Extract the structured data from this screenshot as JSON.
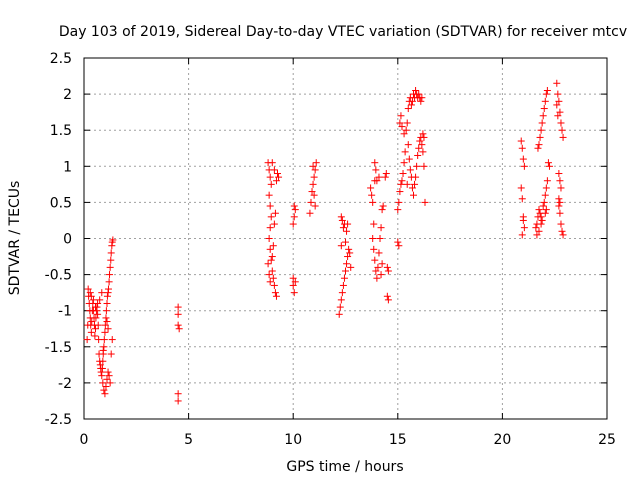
{
  "chart_data": {
    "type": "scatter",
    "title": "Day 103 of 2019, Sidereal Day-to-day VTEC variation (SDTVAR) for receiver mtcv",
    "xlabel": "GPS time / hours",
    "ylabel": "SDTVAR / TECUs",
    "xlim": [
      0,
      25
    ],
    "ylim": [
      -2.5,
      2.5
    ],
    "xticks": [
      0,
      5,
      10,
      15,
      20,
      25
    ],
    "yticks": [
      -2.5,
      -2,
      -1.5,
      -1,
      -0.5,
      0,
      0.5,
      1,
      1.5,
      2,
      2.5
    ],
    "xtick_labels": [
      "0",
      "5",
      "10",
      "15",
      "20",
      "25"
    ],
    "ytick_labels": [
      "-2.5",
      "-2",
      "-1.5",
      "-1",
      "-0.5",
      "0",
      "0.5",
      "1",
      "1.5",
      "2",
      "2.5"
    ],
    "grid": true,
    "marker": "+",
    "color": "#ff0000",
    "series": [
      {
        "name": "SDTVAR",
        "points": [
          [
            0.2,
            -0.7
          ],
          [
            0.22,
            -0.8
          ],
          [
            0.25,
            -0.9
          ],
          [
            0.28,
            -1.0
          ],
          [
            0.3,
            -1.1
          ],
          [
            0.32,
            -1.2
          ],
          [
            0.35,
            -1.3
          ],
          [
            0.37,
            -1.15
          ],
          [
            0.4,
            -1.0
          ],
          [
            0.42,
            -0.9
          ],
          [
            0.45,
            -1.0
          ],
          [
            0.48,
            -1.1
          ],
          [
            0.5,
            -1.2
          ],
          [
            0.52,
            -1.35
          ],
          [
            0.55,
            -1.25
          ],
          [
            0.57,
            -1.1
          ],
          [
            0.6,
            -1.0
          ],
          [
            0.62,
            -0.95
          ],
          [
            0.65,
            -1.05
          ],
          [
            0.68,
            -1.2
          ],
          [
            0.7,
            -1.4
          ],
          [
            0.72,
            -1.6
          ],
          [
            0.75,
            -1.7
          ],
          [
            0.78,
            -1.75
          ],
          [
            0.8,
            -1.8
          ],
          [
            0.82,
            -1.85
          ],
          [
            0.85,
            -1.9
          ],
          [
            0.88,
            -1.8
          ],
          [
            0.9,
            -1.7
          ],
          [
            0.92,
            -1.6
          ],
          [
            0.95,
            -1.5
          ],
          [
            0.97,
            -1.4
          ],
          [
            1.0,
            -1.3
          ],
          [
            1.02,
            -1.2
          ],
          [
            1.05,
            -1.1
          ],
          [
            1.07,
            -1.0
          ],
          [
            1.1,
            -0.9
          ],
          [
            1.12,
            -0.8
          ],
          [
            1.15,
            -0.75
          ],
          [
            1.17,
            -0.7
          ],
          [
            0.9,
            -2.0
          ],
          [
            0.95,
            -2.1
          ],
          [
            1.0,
            -2.15
          ],
          [
            1.05,
            -2.05
          ],
          [
            1.1,
            -1.95
          ],
          [
            1.15,
            -1.85
          ],
          [
            1.2,
            -1.9
          ],
          [
            1.25,
            -2.0
          ],
          [
            1.3,
            -1.6
          ],
          [
            1.35,
            -1.4
          ],
          [
            1.2,
            -0.6
          ],
          [
            1.22,
            -0.5
          ],
          [
            1.25,
            -0.4
          ],
          [
            1.28,
            -0.3
          ],
          [
            1.3,
            -0.2
          ],
          [
            1.33,
            -0.1
          ],
          [
            1.35,
            -0.05
          ],
          [
            1.38,
            -0.02
          ],
          [
            0.85,
            -0.75
          ],
          [
            0.75,
            -0.85
          ],
          [
            0.65,
            -0.9
          ],
          [
            0.55,
            -0.95
          ],
          [
            0.45,
            -0.85
          ],
          [
            0.35,
            -0.8
          ],
          [
            0.3,
            -0.75
          ],
          [
            0.15,
            -1.4
          ],
          [
            0.18,
            -1.2
          ],
          [
            1.1,
            -1.15
          ],
          [
            1.15,
            -1.25
          ],
          [
            0.92,
            -1.55
          ],
          [
            4.5,
            -0.95
          ],
          [
            4.5,
            -1.05
          ],
          [
            4.5,
            -1.2
          ],
          [
            4.55,
            -1.25
          ],
          [
            4.5,
            -2.15
          ],
          [
            4.5,
            -2.25
          ],
          [
            8.8,
            1.05
          ],
          [
            8.85,
            0.95
          ],
          [
            8.9,
            0.85
          ],
          [
            8.95,
            0.75
          ],
          [
            8.85,
            0.6
          ],
          [
            8.9,
            0.45
          ],
          [
            8.95,
            0.3
          ],
          [
            8.9,
            0.15
          ],
          [
            8.85,
            0.0
          ],
          [
            8.9,
            -0.15
          ],
          [
            8.95,
            -0.3
          ],
          [
            9.0,
            -0.45
          ],
          [
            9.05,
            -0.55
          ],
          [
            9.1,
            -0.65
          ],
          [
            9.15,
            -0.75
          ],
          [
            9.2,
            -0.8
          ],
          [
            8.8,
            -0.35
          ],
          [
            8.85,
            -0.5
          ],
          [
            8.9,
            -0.6
          ],
          [
            9.0,
            -0.25
          ],
          [
            9.05,
            -0.1
          ],
          [
            9.1,
            0.2
          ],
          [
            9.15,
            0.35
          ],
          [
            9.2,
            0.8
          ],
          [
            9.25,
            0.9
          ],
          [
            9.1,
            0.95
          ],
          [
            9.0,
            1.05
          ],
          [
            9.3,
            0.85
          ],
          [
            10.0,
            -0.55
          ],
          [
            10.0,
            -0.65
          ],
          [
            10.05,
            -0.75
          ],
          [
            10.1,
            -0.6
          ],
          [
            10.0,
            0.2
          ],
          [
            10.05,
            0.3
          ],
          [
            10.1,
            0.4
          ],
          [
            10.05,
            0.45
          ],
          [
            10.8,
            0.35
          ],
          [
            10.85,
            0.5
          ],
          [
            10.9,
            0.65
          ],
          [
            10.95,
            0.75
          ],
          [
            11.0,
            0.85
          ],
          [
            11.05,
            0.95
          ],
          [
            11.1,
            1.05
          ],
          [
            10.95,
            1.0
          ],
          [
            11.0,
            0.6
          ],
          [
            11.05,
            0.45
          ],
          [
            12.2,
            -1.05
          ],
          [
            12.25,
            -0.95
          ],
          [
            12.3,
            -0.85
          ],
          [
            12.35,
            -0.75
          ],
          [
            12.4,
            -0.65
          ],
          [
            12.45,
            -0.55
          ],
          [
            12.5,
            -0.45
          ],
          [
            12.55,
            -0.35
          ],
          [
            12.6,
            -0.25
          ],
          [
            12.65,
            -0.15
          ],
          [
            12.3,
            0.3
          ],
          [
            12.35,
            0.25
          ],
          [
            12.4,
            0.15
          ],
          [
            12.45,
            0.2
          ],
          [
            12.5,
            -0.05
          ],
          [
            12.55,
            0.1
          ],
          [
            12.6,
            0.2
          ],
          [
            12.7,
            -0.2
          ],
          [
            12.75,
            -0.4
          ],
          [
            12.3,
            -0.1
          ],
          [
            13.7,
            0.7
          ],
          [
            13.75,
            0.6
          ],
          [
            13.8,
            0.5
          ],
          [
            13.85,
            0.2
          ],
          [
            13.8,
            0.0
          ],
          [
            13.85,
            -0.15
          ],
          [
            13.9,
            -0.3
          ],
          [
            13.95,
            -0.45
          ],
          [
            14.0,
            -0.55
          ],
          [
            14.05,
            -0.4
          ],
          [
            14.1,
            -0.2
          ],
          [
            14.15,
            0.0
          ],
          [
            14.2,
            0.15
          ],
          [
            14.25,
            0.4
          ],
          [
            14.3,
            0.45
          ],
          [
            13.9,
            0.8
          ],
          [
            13.95,
            0.95
          ],
          [
            13.9,
            1.05
          ],
          [
            14.0,
            0.8
          ],
          [
            14.1,
            0.85
          ],
          [
            14.4,
            0.85
          ],
          [
            14.45,
            0.9
          ],
          [
            14.5,
            -0.4
          ],
          [
            14.55,
            -0.45
          ],
          [
            14.5,
            -0.8
          ],
          [
            14.55,
            -0.85
          ],
          [
            14.2,
            -0.5
          ],
          [
            14.25,
            -0.35
          ],
          [
            15.0,
            -0.05
          ],
          [
            15.05,
            -0.1
          ],
          [
            15.0,
            0.4
          ],
          [
            15.05,
            0.5
          ],
          [
            15.1,
            0.65
          ],
          [
            15.15,
            0.75
          ],
          [
            15.2,
            0.8
          ],
          [
            15.25,
            0.9
          ],
          [
            15.3,
            1.05
          ],
          [
            15.35,
            1.2
          ],
          [
            15.1,
            1.6
          ],
          [
            15.15,
            1.7
          ],
          [
            15.2,
            1.55
          ],
          [
            15.3,
            1.45
          ],
          [
            15.4,
            1.5
          ],
          [
            15.45,
            1.6
          ],
          [
            15.5,
            1.8
          ],
          [
            15.55,
            1.9
          ],
          [
            15.6,
            1.95
          ],
          [
            15.65,
            1.85
          ],
          [
            15.7,
            1.9
          ],
          [
            15.75,
            2.0
          ],
          [
            15.8,
            1.95
          ],
          [
            15.85,
            2.05
          ],
          [
            15.9,
            2.0
          ],
          [
            15.95,
            1.95
          ],
          [
            16.0,
            2.0
          ],
          [
            16.05,
            1.95
          ],
          [
            16.1,
            1.9
          ],
          [
            16.15,
            1.95
          ],
          [
            15.5,
            1.3
          ],
          [
            15.55,
            1.1
          ],
          [
            15.6,
            0.95
          ],
          [
            15.65,
            0.85
          ],
          [
            15.7,
            0.7
          ],
          [
            15.75,
            0.6
          ],
          [
            15.8,
            0.75
          ],
          [
            15.85,
            0.85
          ],
          [
            15.9,
            1.0
          ],
          [
            15.95,
            1.15
          ],
          [
            16.0,
            1.25
          ],
          [
            16.05,
            1.35
          ],
          [
            16.1,
            1.4
          ],
          [
            16.15,
            1.3
          ],
          [
            16.2,
            1.2
          ],
          [
            16.25,
            1.0
          ],
          [
            16.3,
            0.5
          ],
          [
            16.2,
            1.45
          ],
          [
            16.25,
            1.4
          ],
          [
            15.45,
            0.75
          ],
          [
            20.9,
            1.35
          ],
          [
            20.95,
            1.25
          ],
          [
            21.0,
            1.1
          ],
          [
            21.05,
            1.0
          ],
          [
            20.9,
            0.7
          ],
          [
            20.95,
            0.55
          ],
          [
            21.0,
            0.25
          ],
          [
            21.05,
            0.15
          ],
          [
            20.95,
            0.05
          ],
          [
            21.0,
            0.3
          ],
          [
            21.6,
            0.15
          ],
          [
            21.65,
            0.2
          ],
          [
            21.7,
            0.3
          ],
          [
            21.75,
            0.4
          ],
          [
            21.8,
            0.35
          ],
          [
            21.85,
            0.3
          ],
          [
            21.9,
            0.25
          ],
          [
            21.95,
            0.45
          ],
          [
            22.0,
            0.5
          ],
          [
            22.05,
            0.6
          ],
          [
            22.1,
            0.7
          ],
          [
            22.15,
            0.8
          ],
          [
            21.7,
            1.25
          ],
          [
            21.75,
            1.3
          ],
          [
            21.8,
            1.4
          ],
          [
            21.85,
            1.5
          ],
          [
            21.9,
            1.6
          ],
          [
            21.95,
            1.7
          ],
          [
            22.0,
            1.8
          ],
          [
            22.05,
            1.9
          ],
          [
            22.1,
            2.0
          ],
          [
            22.15,
            2.05
          ],
          [
            22.2,
            1.05
          ],
          [
            22.25,
            1.0
          ],
          [
            21.65,
            0.05
          ],
          [
            21.75,
            0.1
          ],
          [
            21.85,
            0.2
          ],
          [
            22.05,
            0.35
          ],
          [
            22.1,
            0.4
          ],
          [
            22.6,
            2.15
          ],
          [
            22.65,
            2.0
          ],
          [
            22.7,
            1.9
          ],
          [
            22.75,
            1.75
          ],
          [
            22.8,
            1.6
          ],
          [
            22.85,
            1.5
          ],
          [
            22.9,
            1.4
          ],
          [
            22.7,
            0.9
          ],
          [
            22.75,
            0.8
          ],
          [
            22.8,
            0.7
          ],
          [
            22.7,
            0.45
          ],
          [
            22.75,
            0.35
          ],
          [
            22.8,
            0.2
          ],
          [
            22.85,
            0.1
          ],
          [
            22.9,
            0.05
          ],
          [
            22.6,
            1.85
          ],
          [
            22.65,
            1.7
          ],
          [
            22.7,
            0.55
          ],
          [
            22.75,
            0.5
          ]
        ]
      }
    ]
  }
}
